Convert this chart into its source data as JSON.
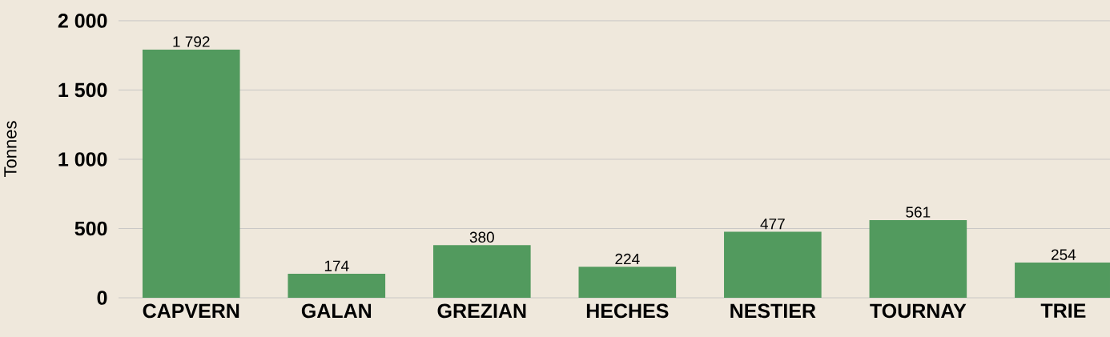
{
  "chart_data": {
    "type": "bar",
    "ylabel": "Tonnes",
    "categories": [
      "CAPVERN",
      "GALAN",
      "GREZIAN",
      "HECHES",
      "NESTIER",
      "TOURNAY",
      "TRIE"
    ],
    "values": [
      1792,
      174,
      380,
      224,
      477,
      561,
      254
    ],
    "value_labels": [
      "1 792",
      "174",
      "380",
      "224",
      "477",
      "561",
      "254"
    ],
    "color": "#529a5e",
    "ylim": [
      0,
      2150
    ],
    "yticks": [
      0,
      500,
      {
        "value": 1000,
        "label": "1 000"
      },
      {
        "value": 1500,
        "label": "1 500"
      },
      {
        "value": 2000,
        "label": "2 000"
      }
    ],
    "grid": "y"
  }
}
